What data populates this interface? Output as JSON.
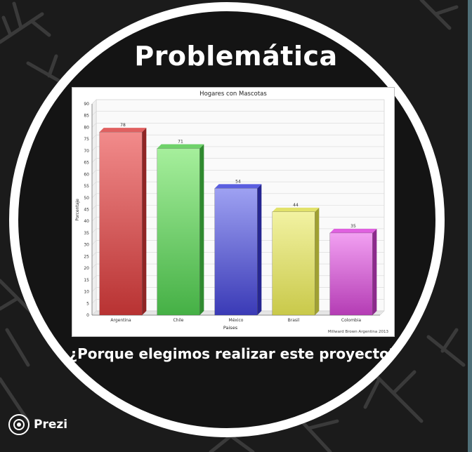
{
  "slide": {
    "title": "Problemática",
    "subtitle": "¿Porque elegimos realizar este proyecto?",
    "logo_label": "Prezi"
  },
  "chart_data": {
    "type": "bar",
    "title": "Hogares con Mascotas",
    "xlabel": "Paises",
    "ylabel": "Porcentaje",
    "source": "Millward Brown Argentina 2013",
    "categories": [
      "Argentina",
      "Chile",
      "México",
      "Brasil",
      "Colombia"
    ],
    "values": [
      78,
      71,
      54,
      44,
      35
    ],
    "ylim": [
      0,
      90
    ],
    "ytick_step": 5,
    "grid": true,
    "colors": [
      {
        "top": "#f28b8b",
        "bottom": "#b83232",
        "side": "#8f2424",
        "cap": "#e06060"
      },
      {
        "top": "#a6ef9c",
        "bottom": "#45b045",
        "side": "#2f8a2f",
        "cap": "#6fd26a"
      },
      {
        "top": "#9ea1f2",
        "bottom": "#3a3ab6",
        "side": "#262690",
        "cap": "#5a5ee0"
      },
      {
        "top": "#f2f2a2",
        "bottom": "#c9c94a",
        "side": "#a0a032",
        "cap": "#e2e26a"
      },
      {
        "top": "#f2a0f2",
        "bottom": "#b43cb4",
        "side": "#8c2a8c",
        "cap": "#e060e0"
      }
    ]
  }
}
